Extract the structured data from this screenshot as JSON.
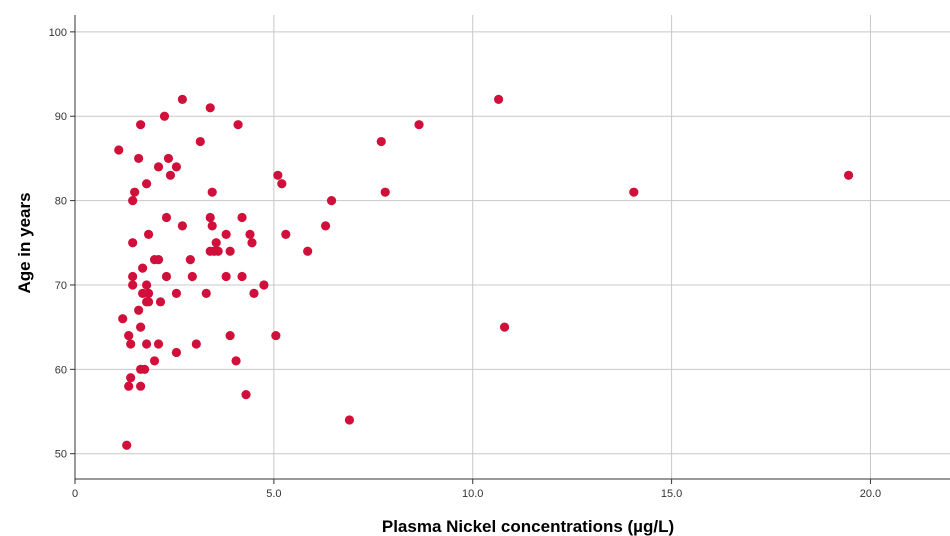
{
  "chart_data": {
    "type": "scatter",
    "xlabel": "Plasma Nickel concentrations (µg/L)",
    "ylabel": "Age in years",
    "xlim": [
      0,
      22
    ],
    "ylim": [
      47,
      102
    ],
    "x_ticks": [
      0,
      5,
      10,
      15,
      20
    ],
    "x_tick_labels": [
      "0",
      "5.0",
      "10.0",
      "15.0",
      "20.0"
    ],
    "y_ticks": [
      50,
      60,
      70,
      80,
      90,
      100
    ],
    "y_tick_labels": [
      "50",
      "60",
      "70",
      "80",
      "90",
      "100"
    ],
    "grid": true,
    "marker_color": "#d0103a",
    "grid_color": "#c8c8c8",
    "points": [
      {
        "x": 1.1,
        "y": 86
      },
      {
        "x": 1.2,
        "y": 66
      },
      {
        "x": 1.3,
        "y": 51
      },
      {
        "x": 1.35,
        "y": 64
      },
      {
        "x": 1.35,
        "y": 58
      },
      {
        "x": 1.4,
        "y": 59
      },
      {
        "x": 1.4,
        "y": 63
      },
      {
        "x": 1.45,
        "y": 80
      },
      {
        "x": 1.45,
        "y": 75
      },
      {
        "x": 1.45,
        "y": 71
      },
      {
        "x": 1.45,
        "y": 70
      },
      {
        "x": 1.5,
        "y": 81
      },
      {
        "x": 1.6,
        "y": 85
      },
      {
        "x": 1.6,
        "y": 67
      },
      {
        "x": 1.65,
        "y": 89
      },
      {
        "x": 1.65,
        "y": 65
      },
      {
        "x": 1.65,
        "y": 60
      },
      {
        "x": 1.65,
        "y": 58
      },
      {
        "x": 1.7,
        "y": 72
      },
      {
        "x": 1.7,
        "y": 69
      },
      {
        "x": 1.75,
        "y": 60
      },
      {
        "x": 1.8,
        "y": 82
      },
      {
        "x": 1.8,
        "y": 70
      },
      {
        "x": 1.8,
        "y": 68
      },
      {
        "x": 1.8,
        "y": 63
      },
      {
        "x": 1.85,
        "y": 76
      },
      {
        "x": 1.85,
        "y": 69
      },
      {
        "x": 1.85,
        "y": 68
      },
      {
        "x": 2.0,
        "y": 73
      },
      {
        "x": 2.0,
        "y": 61
      },
      {
        "x": 2.1,
        "y": 84
      },
      {
        "x": 2.1,
        "y": 73
      },
      {
        "x": 2.1,
        "y": 63
      },
      {
        "x": 2.15,
        "y": 68
      },
      {
        "x": 2.25,
        "y": 90
      },
      {
        "x": 2.3,
        "y": 78
      },
      {
        "x": 2.3,
        "y": 71
      },
      {
        "x": 2.35,
        "y": 85
      },
      {
        "x": 2.4,
        "y": 83
      },
      {
        "x": 2.55,
        "y": 84
      },
      {
        "x": 2.55,
        "y": 69
      },
      {
        "x": 2.55,
        "y": 62
      },
      {
        "x": 2.7,
        "y": 92
      },
      {
        "x": 2.7,
        "y": 77
      },
      {
        "x": 2.9,
        "y": 73
      },
      {
        "x": 2.95,
        "y": 71
      },
      {
        "x": 3.05,
        "y": 63
      },
      {
        "x": 3.15,
        "y": 87
      },
      {
        "x": 3.3,
        "y": 69
      },
      {
        "x": 3.4,
        "y": 91
      },
      {
        "x": 3.4,
        "y": 78
      },
      {
        "x": 3.4,
        "y": 74
      },
      {
        "x": 3.45,
        "y": 81
      },
      {
        "x": 3.45,
        "y": 77
      },
      {
        "x": 3.5,
        "y": 74
      },
      {
        "x": 3.55,
        "y": 75
      },
      {
        "x": 3.6,
        "y": 74
      },
      {
        "x": 3.8,
        "y": 76
      },
      {
        "x": 3.8,
        "y": 71
      },
      {
        "x": 3.9,
        "y": 74
      },
      {
        "x": 3.9,
        "y": 64
      },
      {
        "x": 4.05,
        "y": 61
      },
      {
        "x": 4.1,
        "y": 89
      },
      {
        "x": 4.2,
        "y": 78
      },
      {
        "x": 4.2,
        "y": 71
      },
      {
        "x": 4.3,
        "y": 57
      },
      {
        "x": 4.4,
        "y": 76
      },
      {
        "x": 4.45,
        "y": 75
      },
      {
        "x": 4.5,
        "y": 69
      },
      {
        "x": 4.75,
        "y": 70
      },
      {
        "x": 5.05,
        "y": 64
      },
      {
        "x": 5.1,
        "y": 83
      },
      {
        "x": 5.2,
        "y": 82
      },
      {
        "x": 5.3,
        "y": 76
      },
      {
        "x": 5.85,
        "y": 74
      },
      {
        "x": 6.3,
        "y": 77
      },
      {
        "x": 6.45,
        "y": 80
      },
      {
        "x": 6.9,
        "y": 54
      },
      {
        "x": 7.7,
        "y": 87
      },
      {
        "x": 7.8,
        "y": 81
      },
      {
        "x": 8.65,
        "y": 89
      },
      {
        "x": 10.65,
        "y": 92
      },
      {
        "x": 10.8,
        "y": 65
      },
      {
        "x": 14.05,
        "y": 81
      },
      {
        "x": 19.45,
        "y": 83
      }
    ]
  }
}
